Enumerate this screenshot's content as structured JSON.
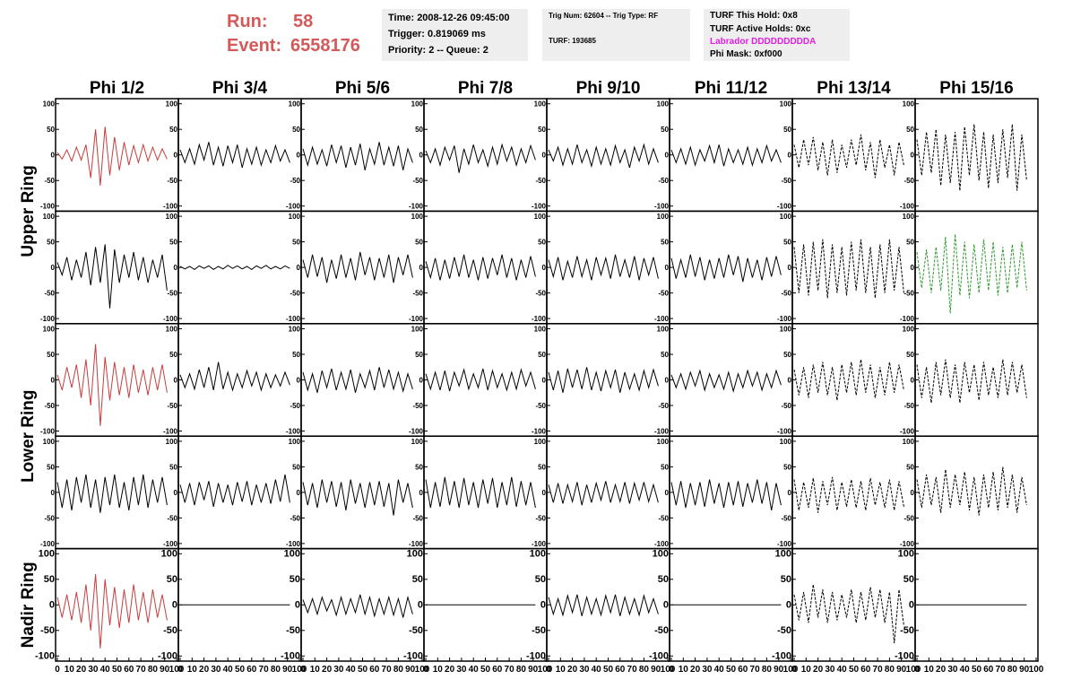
{
  "header": {
    "run_label": "Run:",
    "run": "58",
    "event_label": "Event:",
    "event": "6558176",
    "info_boxes": [
      [
        "Time: 2008-12-26 09:45:00",
        "Trigger: 0.819069 ms",
        "Priority: 2 -- Queue: 2"
      ],
      [
        "Trig Num: 62604 -- Trig Type: RF",
        "TURF: 193685"
      ],
      [
        "TURF This Hold: 0x8",
        "TURF Active Holds: 0xc",
        "Labrador DDDDDDDDDA",
        "Phi Mask: 0xf000"
      ]
    ]
  },
  "columns": [
    "Phi 1/2",
    "Phi 3/4",
    "Phi 5/6",
    "Phi 7/8",
    "Phi 9/10",
    "Phi 11/12",
    "Phi 13/14",
    "Phi 15/16"
  ],
  "rows": [
    "Upper Ring",
    "Lower Ring",
    "Nadir Ring"
  ],
  "axes": {
    "xlim": [
      0,
      100
    ],
    "ylim": [
      -110,
      110
    ],
    "xticks": [
      0,
      10,
      20,
      30,
      40,
      50,
      60,
      70,
      80,
      90,
      100
    ],
    "yticks": [
      -100,
      -50,
      0,
      50,
      100
    ],
    "x": [
      0,
      4,
      8,
      12,
      16,
      20,
      24,
      28,
      32,
      36,
      40,
      44,
      48,
      52,
      56,
      60,
      64,
      68,
      72,
      76,
      80,
      84,
      88,
      92
    ]
  },
  "chart_data": [
    {
      "type": "line",
      "color": "#c83c3c",
      "dashed": false,
      "values": [
        5,
        -8,
        10,
        -12,
        15,
        -10,
        20,
        -45,
        50,
        -60,
        55,
        -40,
        35,
        -30,
        25,
        -20,
        18,
        -15,
        20,
        -12,
        15,
        -10,
        12,
        -8
      ]
    },
    {
      "type": "line",
      "color": "#000000",
      "dashed": false,
      "values": [
        10,
        -15,
        12,
        -18,
        20,
        -10,
        25,
        -20,
        15,
        -22,
        18,
        -15,
        20,
        -25,
        12,
        -18,
        15,
        -20,
        10,
        -15,
        18,
        -12,
        10,
        -15
      ]
    },
    {
      "type": "line",
      "color": "#000000",
      "dashed": false,
      "values": [
        12,
        -20,
        15,
        -18,
        10,
        -22,
        20,
        -15,
        18,
        -25,
        15,
        -20,
        22,
        -30,
        12,
        -18,
        25,
        -20,
        15,
        -22,
        18,
        -30,
        12,
        -15
      ]
    },
    {
      "type": "line",
      "color": "#000000",
      "dashed": false,
      "values": [
        8,
        -15,
        12,
        -20,
        15,
        -10,
        18,
        -35,
        12,
        -18,
        20,
        -15,
        10,
        -22,
        15,
        -18,
        20,
        -12,
        15,
        -20,
        12,
        -15,
        18,
        -10
      ]
    },
    {
      "type": "line",
      "color": "#000000",
      "dashed": false,
      "values": [
        10,
        -12,
        15,
        -20,
        12,
        -18,
        20,
        -15,
        10,
        -22,
        15,
        -18,
        12,
        -20,
        18,
        -15,
        10,
        -25,
        15,
        -12,
        20,
        -18,
        12,
        -15
      ]
    },
    {
      "type": "line",
      "color": "#000000",
      "dashed": false,
      "values": [
        10,
        -15,
        12,
        -18,
        15,
        -20,
        10,
        -12,
        18,
        -15,
        20,
        -22,
        12,
        -15,
        10,
        -18,
        15,
        -20,
        12,
        -15,
        18,
        -12,
        10,
        -15
      ]
    },
    {
      "type": "line",
      "color": "#000000",
      "dashed": true,
      "values": [
        20,
        -25,
        30,
        -20,
        35,
        -30,
        25,
        -40,
        30,
        -35,
        20,
        -25,
        30,
        -20,
        40,
        -30,
        25,
        -45,
        30,
        -25,
        20,
        -40,
        25,
        -20
      ]
    },
    {
      "type": "line",
      "color": "#000000",
      "dashed": true,
      "values": [
        30,
        -40,
        45,
        -35,
        50,
        -60,
        40,
        -55,
        45,
        -70,
        55,
        -40,
        60,
        -50,
        45,
        -65,
        40,
        -55,
        50,
        -45,
        60,
        -70,
        40,
        -50
      ]
    },
    {
      "type": "line",
      "color": "#000000",
      "dashed": false,
      "values": [
        10,
        -15,
        20,
        -25,
        15,
        -20,
        30,
        -35,
        40,
        -30,
        45,
        -80,
        35,
        -30,
        25,
        -20,
        30,
        -25,
        20,
        -30,
        15,
        -20,
        25,
        -45
      ]
    },
    {
      "type": "line",
      "color": "#000000",
      "dashed": false,
      "values": [
        2,
        -3,
        2,
        -4,
        3,
        -2,
        3,
        -4,
        2,
        -3,
        4,
        -2,
        3,
        -3,
        2,
        -4,
        3,
        -2,
        4,
        -3,
        2,
        -3,
        3,
        -2
      ]
    },
    {
      "type": "line",
      "color": "#000000",
      "dashed": false,
      "values": [
        15,
        -20,
        25,
        -18,
        20,
        -30,
        15,
        -22,
        25,
        -20,
        18,
        -25,
        30,
        -15,
        20,
        -25,
        18,
        -20,
        25,
        -30,
        20,
        -15,
        25,
        -20
      ]
    },
    {
      "type": "line",
      "color": "#000000",
      "dashed": false,
      "values": [
        12,
        -20,
        18,
        -25,
        15,
        -22,
        20,
        -18,
        25,
        -20,
        15,
        -25,
        20,
        -22,
        18,
        -15,
        25,
        -20,
        18,
        -25,
        15,
        -20,
        22,
        -18
      ]
    },
    {
      "type": "line",
      "color": "#000000",
      "dashed": false,
      "values": [
        15,
        -18,
        20,
        -25,
        12,
        -20,
        22,
        -18,
        15,
        -25,
        20,
        -15,
        18,
        -22,
        25,
        -18,
        15,
        -20,
        22,
        -25,
        18,
        -15,
        20,
        -22
      ]
    },
    {
      "type": "line",
      "color": "#000000",
      "dashed": false,
      "values": [
        18,
        -22,
        15,
        -20,
        25,
        -18,
        20,
        -25,
        15,
        -22,
        18,
        -20,
        25,
        -15,
        22,
        -28,
        18,
        -20,
        15,
        -25,
        20,
        -18,
        22,
        -15
      ]
    },
    {
      "type": "line",
      "color": "#000000",
      "dashed": true,
      "values": [
        40,
        -50,
        45,
        -55,
        50,
        -45,
        55,
        -60,
        45,
        -50,
        40,
        -55,
        50,
        -45,
        55,
        -50,
        40,
        -60,
        45,
        -50,
        55,
        -45,
        40,
        -50
      ]
    },
    {
      "type": "line",
      "color": "#2e9a2e",
      "dashed": true,
      "values": [
        30,
        -40,
        35,
        -50,
        40,
        -45,
        60,
        -90,
        65,
        -55,
        50,
        -60,
        45,
        -50,
        55,
        -45,
        50,
        -55,
        40,
        -50,
        45,
        -40,
        50,
        -45
      ]
    },
    {
      "type": "line",
      "color": "#c83c3c",
      "dashed": false,
      "values": [
        10,
        -20,
        25,
        -15,
        30,
        -35,
        40,
        -50,
        70,
        -90,
        45,
        -40,
        35,
        -30,
        25,
        -35,
        30,
        -25,
        20,
        -30,
        25,
        -20,
        30,
        -25
      ]
    },
    {
      "type": "line",
      "color": "#000000",
      "dashed": false,
      "values": [
        10,
        -15,
        12,
        -18,
        20,
        -15,
        25,
        -20,
        35,
        -18,
        15,
        -20,
        12,
        -15,
        18,
        -12,
        15,
        -20,
        12,
        -15,
        10,
        -12,
        15,
        -10
      ]
    },
    {
      "type": "line",
      "color": "#000000",
      "dashed": false,
      "values": [
        15,
        -20,
        12,
        -25,
        18,
        -15,
        22,
        -20,
        15,
        -18,
        20,
        -25,
        12,
        -15,
        18,
        -20,
        25,
        -15,
        20,
        -18,
        15,
        -22,
        12,
        -18
      ]
    },
    {
      "type": "line",
      "color": "#000000",
      "dashed": false,
      "values": [
        12,
        -18,
        15,
        -20,
        18,
        -22,
        15,
        -12,
        20,
        -18,
        12,
        -15,
        22,
        -20,
        18,
        -15,
        12,
        -20,
        15,
        -18,
        20,
        -12,
        15,
        -18
      ]
    },
    {
      "type": "line",
      "color": "#000000",
      "dashed": false,
      "values": [
        15,
        -20,
        18,
        -25,
        22,
        -15,
        20,
        -18,
        25,
        -20,
        15,
        -22,
        18,
        -15,
        20,
        -25,
        15,
        -18,
        12,
        -20,
        18,
        -15,
        20,
        -12
      ]
    },
    {
      "type": "line",
      "color": "#000000",
      "dashed": false,
      "values": [
        10,
        -15,
        12,
        -18,
        15,
        -12,
        18,
        -20,
        12,
        -15,
        10,
        -18,
        15,
        -22,
        12,
        -15,
        18,
        -12,
        15,
        -20,
        12,
        -15,
        18,
        -10
      ]
    },
    {
      "type": "line",
      "color": "#000000",
      "dashed": true,
      "values": [
        20,
        -30,
        25,
        -35,
        30,
        -25,
        35,
        -30,
        25,
        -40,
        30,
        -25,
        35,
        -30,
        40,
        -25,
        30,
        -35,
        25,
        -30,
        35,
        -25,
        30,
        -20
      ]
    },
    {
      "type": "line",
      "color": "#000000",
      "dashed": true,
      "values": [
        30,
        -35,
        25,
        -45,
        35,
        -30,
        40,
        -35,
        30,
        -45,
        35,
        -25,
        30,
        -40,
        35,
        -30,
        25,
        -35,
        40,
        -30,
        35,
        -25,
        30,
        -35
      ]
    },
    {
      "type": "line",
      "color": "#000000",
      "dashed": false,
      "values": [
        20,
        -30,
        25,
        -35,
        30,
        -20,
        35,
        -30,
        25,
        -40,
        30,
        -25,
        35,
        -30,
        20,
        -35,
        30,
        -25,
        35,
        -30,
        25,
        -20,
        30,
        -25
      ]
    },
    {
      "type": "line",
      "color": "#000000",
      "dashed": false,
      "values": [
        15,
        -20,
        18,
        -25,
        20,
        -15,
        22,
        -28,
        18,
        -20,
        15,
        -25,
        20,
        -18,
        22,
        -25,
        15,
        -20,
        18,
        -22,
        25,
        -18,
        35,
        -20
      ]
    },
    {
      "type": "line",
      "color": "#000000",
      "dashed": false,
      "values": [
        20,
        -25,
        18,
        -30,
        25,
        -20,
        22,
        -28,
        20,
        -35,
        25,
        -22,
        18,
        -30,
        20,
        -25,
        22,
        -28,
        18,
        -45,
        25,
        -20,
        18,
        -30
      ]
    },
    {
      "type": "line",
      "color": "#000000",
      "dashed": false,
      "values": [
        25,
        -30,
        20,
        -28,
        30,
        -25,
        22,
        -30,
        28,
        -25,
        20,
        -30,
        25,
        -22,
        28,
        -30,
        20,
        -25,
        30,
        -28,
        22,
        -25,
        20,
        -30
      ]
    },
    {
      "type": "line",
      "color": "#000000",
      "dashed": false,
      "values": [
        15,
        -20,
        18,
        -22,
        15,
        -18,
        20,
        -25,
        15,
        -20,
        18,
        -15,
        22,
        -20,
        15,
        -18,
        20,
        -22,
        18,
        -15,
        20,
        -18,
        15,
        -20
      ]
    },
    {
      "type": "line",
      "color": "#000000",
      "dashed": false,
      "values": [
        20,
        -25,
        22,
        -30,
        18,
        -25,
        20,
        -28,
        25,
        -22,
        18,
        -30,
        20,
        -25,
        22,
        -28,
        18,
        -20,
        25,
        -22,
        20,
        -35,
        18,
        -25
      ]
    },
    {
      "type": "line",
      "color": "#000000",
      "dashed": true,
      "values": [
        25,
        -35,
        20,
        -30,
        28,
        -40,
        22,
        -25,
        30,
        -35,
        20,
        -28,
        25,
        -30,
        22,
        -35,
        28,
        -25,
        20,
        -30,
        25,
        -35,
        22,
        -28
      ]
    },
    {
      "type": "line",
      "color": "#000000",
      "dashed": true,
      "values": [
        25,
        -30,
        35,
        -25,
        30,
        -40,
        45,
        -30,
        35,
        -25,
        40,
        -35,
        30,
        -45,
        35,
        -30,
        40,
        -35,
        50,
        -30,
        35,
        -40,
        30,
        -25
      ]
    },
    {
      "type": "line",
      "color": "#c83c3c",
      "dashed": false,
      "values": [
        15,
        -25,
        20,
        -30,
        25,
        -35,
        40,
        -50,
        60,
        -85,
        50,
        -40,
        35,
        -45,
        30,
        -35,
        40,
        -30,
        25,
        -35,
        30,
        -25,
        20,
        -30
      ]
    },
    {
      "type": "line",
      "color": "#000000",
      "dashed": false,
      "values": [
        0,
        0,
        0,
        0,
        0,
        0,
        0,
        0,
        0,
        0,
        0,
        0,
        0,
        0,
        0,
        0,
        0,
        0,
        0,
        0,
        0,
        0,
        0,
        0
      ]
    },
    {
      "type": "line",
      "color": "#000000",
      "dashed": false,
      "values": [
        10,
        -15,
        12,
        -18,
        15,
        -12,
        10,
        -20,
        15,
        -18,
        12,
        -15,
        20,
        -18,
        15,
        -22,
        12,
        -18,
        15,
        -20,
        12,
        -25,
        15,
        -18
      ]
    },
    {
      "type": "line",
      "color": "#000000",
      "dashed": false,
      "values": [
        0,
        0,
        0,
        0,
        0,
        0,
        0,
        0,
        0,
        0,
        0,
        0,
        0,
        0,
        0,
        0,
        0,
        0,
        0,
        0,
        0,
        0,
        0,
        0
      ]
    },
    {
      "type": "line",
      "color": "#000000",
      "dashed": false,
      "values": [
        15,
        -18,
        12,
        -20,
        18,
        -15,
        20,
        -22,
        15,
        -18,
        12,
        -20,
        18,
        -15,
        20,
        -22,
        15,
        -18,
        12,
        -20,
        18,
        -15,
        12,
        -18
      ]
    },
    {
      "type": "line",
      "color": "#000000",
      "dashed": false,
      "values": [
        0,
        0,
        0,
        0,
        0,
        0,
        0,
        0,
        0,
        0,
        0,
        0,
        0,
        0,
        0,
        0,
        0,
        0,
        0,
        0,
        0,
        0,
        0,
        0
      ]
    },
    {
      "type": "line",
      "color": "#000000",
      "dashed": true,
      "values": [
        20,
        -30,
        25,
        -35,
        40,
        -25,
        30,
        -35,
        25,
        -30,
        20,
        -25,
        30,
        -35,
        25,
        -30,
        35,
        -25,
        30,
        -35,
        25,
        -75,
        30,
        -40
      ]
    },
    {
      "type": "line",
      "color": "#000000",
      "dashed": false,
      "values": [
        0,
        0,
        0,
        0,
        0,
        0,
        0,
        0,
        0,
        0,
        0,
        0,
        0,
        0,
        0,
        0,
        0,
        0,
        0,
        0,
        0,
        0,
        0,
        0
      ]
    }
  ]
}
